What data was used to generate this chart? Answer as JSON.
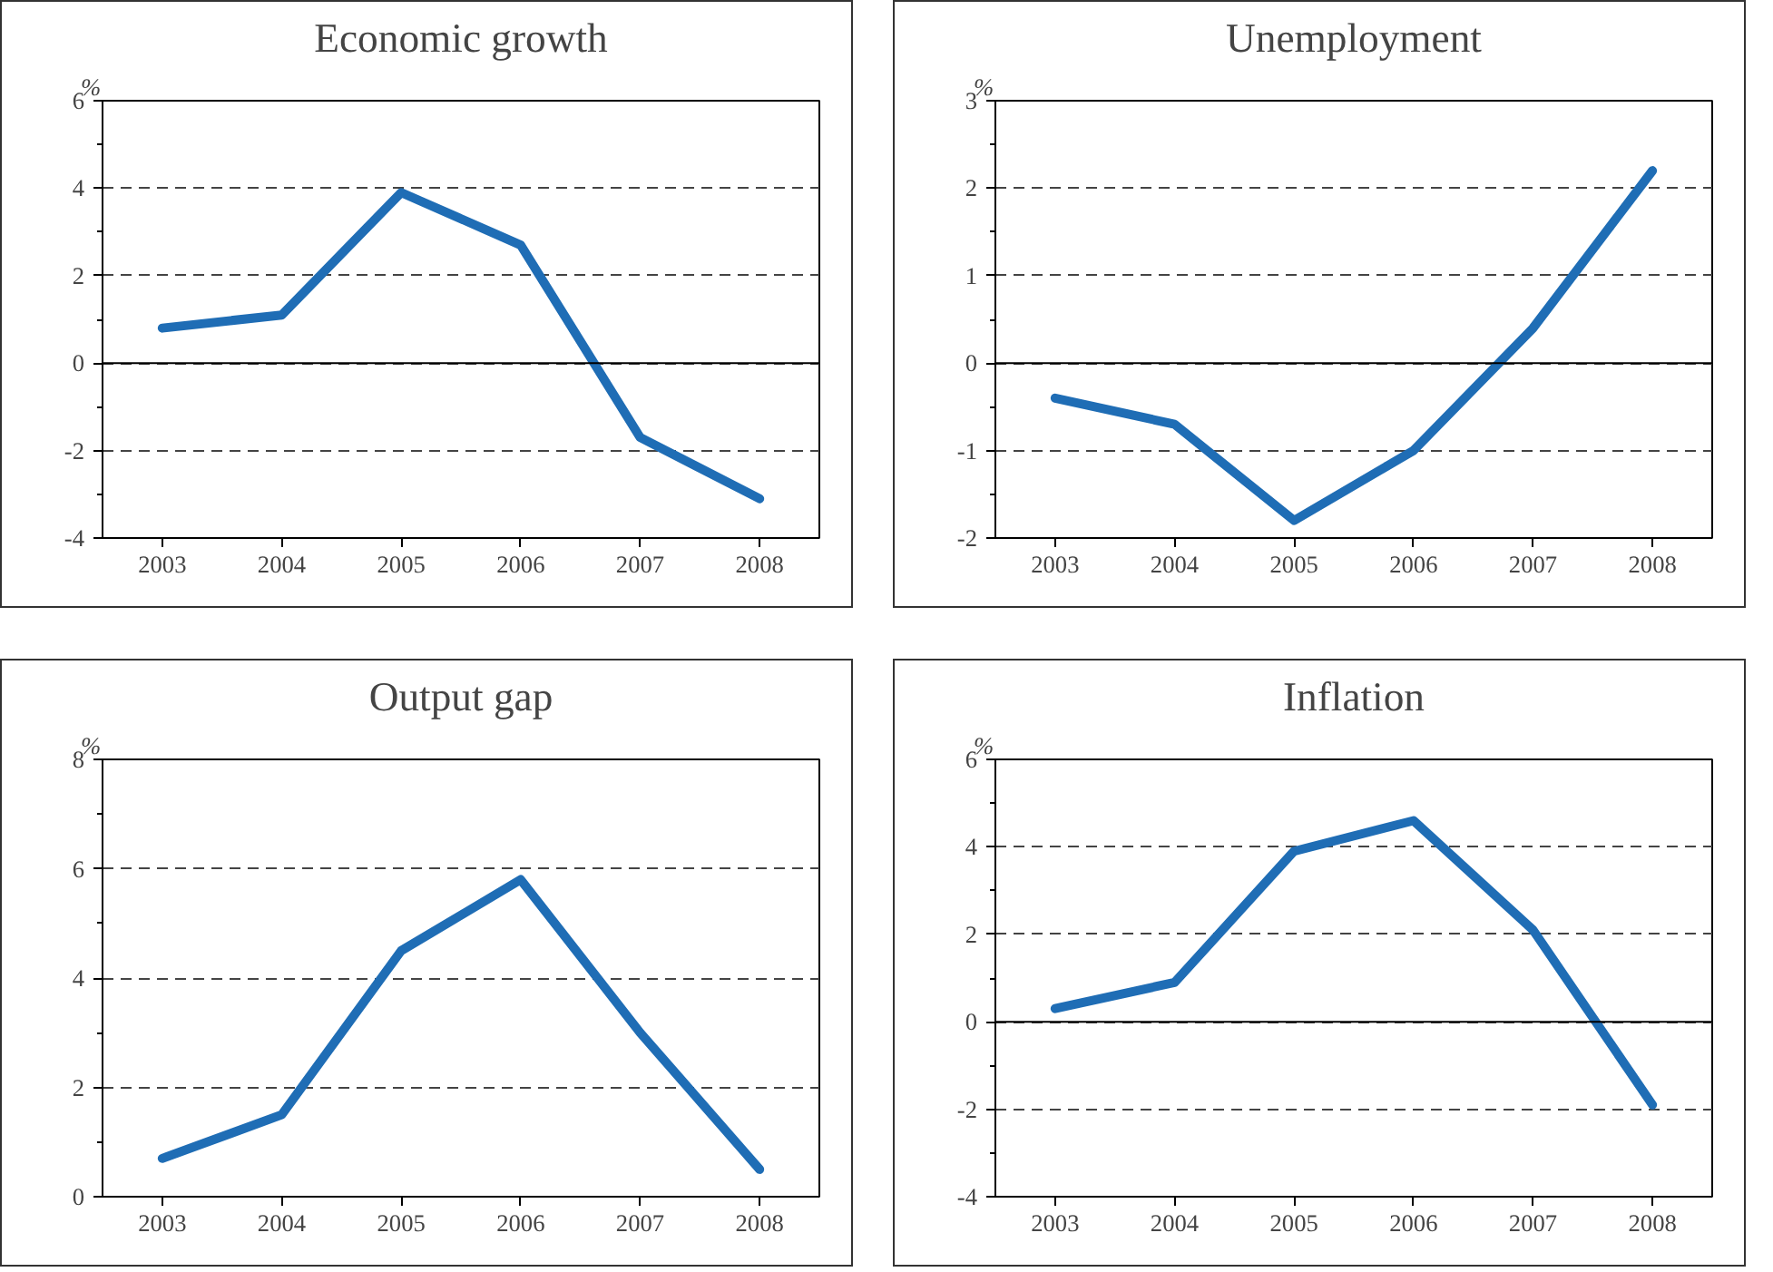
{
  "chart_data": [
    {
      "type": "line",
      "title": "Economic growth",
      "ylabel": "%",
      "categories": [
        "2003",
        "2004",
        "2005",
        "2006",
        "2007",
        "2008"
      ],
      "series": [
        {
          "color": "#1f6db5",
          "values": [
            0.8,
            1.1,
            3.9,
            2.7,
            -1.7,
            -3.1
          ]
        }
      ],
      "ylim": [
        -4,
        6
      ],
      "yticks": [
        -4,
        -2,
        0,
        2,
        4,
        6
      ],
      "grid": "y",
      "line_style": "solid",
      "ref_lines": [
        {
          "axis": "y",
          "value": 0,
          "color": "#000000",
          "line_style": "solid"
        }
      ]
    },
    {
      "type": "line",
      "title": "Unemployment",
      "ylabel": "%",
      "categories": [
        "2003",
        "2004",
        "2005",
        "2006",
        "2007",
        "2008"
      ],
      "series": [
        {
          "color": "#1f6db5",
          "values": [
            -0.4,
            -0.7,
            -1.8,
            -1.0,
            0.4,
            2.2
          ]
        }
      ],
      "ylim": [
        -2,
        3
      ],
      "yticks": [
        -2,
        -1,
        0,
        1,
        2,
        3
      ],
      "grid": "y",
      "line_style": "solid",
      "ref_lines": [
        {
          "axis": "y",
          "value": 0,
          "color": "#000000",
          "line_style": "solid"
        }
      ]
    },
    {
      "type": "line",
      "title": "Output gap",
      "ylabel": "%",
      "categories": [
        "2003",
        "2004",
        "2005",
        "2006",
        "2007",
        "2008"
      ],
      "series": [
        {
          "color": "#1f6db5",
          "values": [
            0.7,
            1.5,
            4.5,
            5.8,
            3.0,
            0.5
          ]
        }
      ],
      "ylim": [
        0,
        8
      ],
      "yticks": [
        0,
        2,
        4,
        6,
        8
      ],
      "grid": "y",
      "line_style": "solid"
    },
    {
      "type": "line",
      "title": "Inflation",
      "ylabel": "%",
      "categories": [
        "2003",
        "2004",
        "2005",
        "2006",
        "2007",
        "2008"
      ],
      "series": [
        {
          "color": "#1f6db5",
          "values": [
            0.3,
            0.9,
            3.9,
            4.6,
            2.1,
            -1.9
          ]
        }
      ],
      "ylim": [
        -4,
        6
      ],
      "yticks": [
        -4,
        -2,
        0,
        2,
        4,
        6
      ],
      "grid": "y",
      "line_style": "solid",
      "ref_lines": [
        {
          "axis": "y",
          "value": 0,
          "color": "#000000",
          "line_style": "solid"
        }
      ]
    }
  ]
}
